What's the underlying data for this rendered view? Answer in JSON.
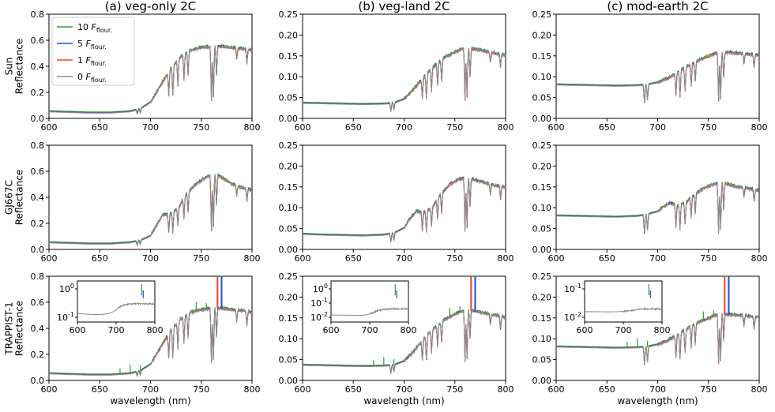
{
  "figure": {
    "column_titles": [
      "(a) veg-only 2C",
      "(b) veg-land 2C",
      "(c) mod-earth 2C"
    ],
    "row_labels": [
      [
        "Sun",
        "Reflectance"
      ],
      [
        "GJ667C",
        "Reflectance"
      ],
      [
        "TRAPPIST-1",
        "Reflectance"
      ]
    ],
    "xlabel": "wavelength (nm)",
    "legend": [
      {
        "prefix": "10 ",
        "var": "F",
        "sub": "flour."
      },
      {
        "prefix": "5 ",
        "var": "F",
        "sub": "flour."
      },
      {
        "prefix": "1 ",
        "var": "F",
        "sub": "flour."
      },
      {
        "prefix": "0 ",
        "var": "F",
        "sub": "flour."
      }
    ],
    "colors": {
      "10": "#2ca02c",
      "5": "#1f4fd8",
      "1": "#e8462a",
      "0": "#8c8c8c",
      "teal": "#3aa08c"
    }
  },
  "chart_data": [
    {
      "type": "line",
      "panel": "sun-veg-only",
      "xlim": [
        600,
        800
      ],
      "ylim": [
        0,
        0.8
      ],
      "xticks": [
        "600",
        "650",
        "700",
        "750",
        "800"
      ],
      "yticks": [
        "0.0",
        "0.2",
        "0.4",
        "0.6",
        "0.8"
      ],
      "series_names": [
        "10 F flour.",
        "5 F flour.",
        "1 F flour.",
        "0 F flour."
      ],
      "x": [
        600,
        620,
        640,
        660,
        680,
        690,
        700,
        710,
        720,
        730,
        740,
        750,
        760,
        770,
        780,
        790,
        800
      ],
      "y": [
        0.05,
        0.045,
        0.04,
        0.04,
        0.05,
        0.07,
        0.12,
        0.25,
        0.38,
        0.47,
        0.52,
        0.54,
        0.55,
        0.55,
        0.54,
        0.53,
        0.52
      ]
    },
    {
      "type": "line",
      "panel": "sun-veg-land",
      "xlim": [
        600,
        800
      ],
      "ylim": [
        0,
        0.25
      ],
      "xticks": [
        "600",
        "650",
        "700",
        "750",
        "800"
      ],
      "yticks": [
        "0.00",
        "0.05",
        "0.10",
        "0.15",
        "0.20",
        "0.25"
      ],
      "x": [
        600,
        620,
        640,
        660,
        680,
        690,
        700,
        710,
        720,
        730,
        740,
        750,
        760,
        770,
        780,
        790,
        800
      ],
      "y": [
        0.036,
        0.035,
        0.034,
        0.033,
        0.034,
        0.036,
        0.045,
        0.07,
        0.1,
        0.125,
        0.145,
        0.158,
        0.168,
        0.165,
        0.16,
        0.155,
        0.15
      ]
    },
    {
      "type": "line",
      "panel": "sun-mod-earth",
      "xlim": [
        600,
        800
      ],
      "ylim": [
        0,
        0.25
      ],
      "xticks": [
        "600",
        "650",
        "700",
        "750",
        "800"
      ],
      "yticks": [
        "0.00",
        "0.05",
        "0.10",
        "0.15",
        "0.20",
        "0.25"
      ],
      "x": [
        600,
        620,
        640,
        660,
        680,
        690,
        700,
        710,
        720,
        730,
        740,
        750,
        760,
        770,
        780,
        790,
        800
      ],
      "y": [
        0.08,
        0.079,
        0.078,
        0.077,
        0.078,
        0.08,
        0.085,
        0.095,
        0.11,
        0.125,
        0.138,
        0.148,
        0.158,
        0.157,
        0.155,
        0.153,
        0.15
      ]
    },
    {
      "type": "line",
      "panel": "gj667c-veg-only",
      "xlim": [
        600,
        800
      ],
      "ylim": [
        0,
        0.8
      ],
      "xticks": [
        "600",
        "650",
        "700",
        "750",
        "800"
      ],
      "yticks": [
        "0.0",
        "0.2",
        "0.4",
        "0.6",
        "0.8"
      ],
      "x": [
        600,
        620,
        640,
        660,
        680,
        690,
        700,
        705,
        712,
        720,
        728,
        735,
        745,
        755,
        762,
        770,
        780,
        790,
        800
      ],
      "y": [
        0.05,
        0.045,
        0.04,
        0.04,
        0.05,
        0.065,
        0.1,
        0.17,
        0.26,
        0.27,
        0.32,
        0.42,
        0.5,
        0.55,
        0.58,
        0.55,
        0.5,
        0.47,
        0.45
      ]
    },
    {
      "type": "line",
      "panel": "gj667c-veg-land",
      "xlim": [
        600,
        800
      ],
      "ylim": [
        0,
        0.25
      ],
      "xticks": [
        "600",
        "650",
        "700",
        "750",
        "800"
      ],
      "yticks": [
        "0.00",
        "0.05",
        "0.10",
        "0.15",
        "0.20",
        "0.25"
      ],
      "x": [
        600,
        620,
        640,
        660,
        680,
        690,
        700,
        705,
        712,
        720,
        728,
        735,
        745,
        755,
        762,
        770,
        780,
        790,
        800
      ],
      "y": [
        0.036,
        0.034,
        0.033,
        0.032,
        0.034,
        0.038,
        0.05,
        0.07,
        0.09,
        0.088,
        0.1,
        0.128,
        0.155,
        0.168,
        0.172,
        0.165,
        0.158,
        0.152,
        0.148
      ]
    },
    {
      "type": "line",
      "panel": "gj667c-mod-earth",
      "xlim": [
        600,
        800
      ],
      "ylim": [
        0,
        0.25
      ],
      "xticks": [
        "600",
        "650",
        "700",
        "750",
        "800"
      ],
      "yticks": [
        "0.00",
        "0.05",
        "0.10",
        "0.15",
        "0.20",
        "0.25"
      ],
      "x": [
        600,
        620,
        640,
        660,
        680,
        690,
        700,
        705,
        712,
        720,
        728,
        735,
        745,
        755,
        762,
        770,
        780,
        790,
        800
      ],
      "y": [
        0.08,
        0.079,
        0.078,
        0.077,
        0.079,
        0.083,
        0.09,
        0.1,
        0.11,
        0.105,
        0.112,
        0.128,
        0.145,
        0.155,
        0.16,
        0.155,
        0.148,
        0.145,
        0.14
      ]
    },
    {
      "type": "line",
      "panel": "trappist-veg-only",
      "xlim": [
        600,
        800
      ],
      "ylim": [
        0,
        0.8
      ],
      "xticks": [
        "600",
        "650",
        "700",
        "750",
        "800"
      ],
      "yticks": [
        "0.0",
        "0.2",
        "0.4",
        "0.6",
        "0.8"
      ],
      "x": [
        600,
        620,
        640,
        660,
        680,
        690,
        700,
        710,
        720,
        730,
        740,
        750,
        760,
        770,
        780,
        790,
        800
      ],
      "y": [
        0.05,
        0.045,
        0.04,
        0.04,
        0.05,
        0.07,
        0.12,
        0.25,
        0.38,
        0.47,
        0.52,
        0.54,
        0.55,
        0.55,
        0.54,
        0.53,
        0.52
      ],
      "spikes": [
        {
          "x": 766,
          "color": "1",
          "top": 0.8
        },
        {
          "x": 770,
          "color": "5",
          "top": 0.8
        }
      ],
      "inset": {
        "xlim": [
          600,
          800
        ],
        "yscale": "log",
        "xticks": [
          "600",
          "700",
          "800"
        ],
        "yticks": [
          "10^0",
          "10^-1"
        ]
      }
    },
    {
      "type": "line",
      "panel": "trappist-veg-land",
      "xlim": [
        600,
        800
      ],
      "ylim": [
        0,
        0.25
      ],
      "xticks": [
        "600",
        "650",
        "700",
        "750",
        "800"
      ],
      "yticks": [
        "0.00",
        "0.05",
        "0.10",
        "0.15",
        "0.20",
        "0.25"
      ],
      "x": [
        600,
        620,
        640,
        660,
        680,
        690,
        700,
        710,
        720,
        730,
        740,
        750,
        760,
        770,
        780,
        790,
        800
      ],
      "y": [
        0.036,
        0.035,
        0.034,
        0.033,
        0.034,
        0.036,
        0.045,
        0.07,
        0.1,
        0.125,
        0.145,
        0.158,
        0.168,
        0.165,
        0.16,
        0.155,
        0.15
      ],
      "spikes": [
        {
          "x": 766,
          "color": "1",
          "top": 0.25
        },
        {
          "x": 770,
          "color": "5",
          "top": 0.25
        }
      ],
      "inset": {
        "xlim": [
          600,
          800
        ],
        "yscale": "log",
        "xticks": [
          "600",
          "700",
          "800"
        ],
        "yticks": [
          "10^0",
          "10^-1",
          "10^-2"
        ]
      }
    },
    {
      "type": "line",
      "panel": "trappist-mod-earth",
      "xlim": [
        600,
        800
      ],
      "ylim": [
        0,
        0.25
      ],
      "xticks": [
        "600",
        "650",
        "700",
        "750",
        "800"
      ],
      "yticks": [
        "0.00",
        "0.05",
        "0.10",
        "0.15",
        "0.20",
        "0.25"
      ],
      "x": [
        600,
        620,
        640,
        660,
        680,
        690,
        700,
        710,
        720,
        730,
        740,
        750,
        760,
        770,
        780,
        790,
        800
      ],
      "y": [
        0.08,
        0.079,
        0.078,
        0.077,
        0.078,
        0.08,
        0.085,
        0.095,
        0.11,
        0.125,
        0.138,
        0.148,
        0.158,
        0.157,
        0.155,
        0.153,
        0.15
      ],
      "spikes": [
        {
          "x": 766,
          "color": "1",
          "top": 0.25
        },
        {
          "x": 770,
          "color": "5",
          "top": 0.25
        }
      ],
      "inset": {
        "xlim": [
          600,
          800
        ],
        "yscale": "log",
        "xticks": [
          "600",
          "700",
          "800"
        ],
        "yticks": [
          "10^-1",
          "10^-2"
        ]
      }
    }
  ]
}
